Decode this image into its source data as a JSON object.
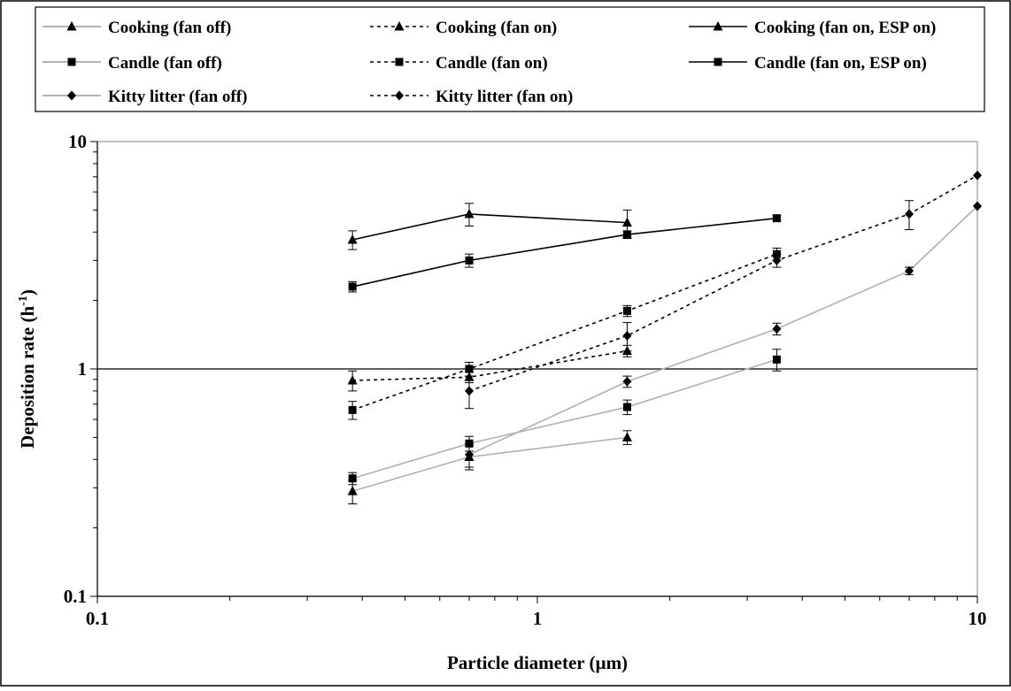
{
  "chart_data": {
    "type": "line",
    "xlabel": "Particle diameter (µm)",
    "ylabel": "Deposition rate (h",
    "ylabel_sup": "-1",
    "ylabel_close": ")",
    "x_scale": "log",
    "y_scale": "log",
    "xlim": [
      0.1,
      10
    ],
    "ylim": [
      0.1,
      10
    ],
    "x_ticks": [
      "0.1",
      "1",
      "10"
    ],
    "y_ticks": [
      "0.1",
      "1",
      "10"
    ],
    "reference_line_y": 1,
    "grid": false,
    "legend_position": "top",
    "series": [
      {
        "name": "Cooking (fan off)",
        "color": "#b0b0b0",
        "dash": "solid",
        "marker": "triangle",
        "x": [
          0.38,
          0.7,
          1.6
        ],
        "y": [
          0.29,
          0.41,
          0.5
        ],
        "err": [
          0.035,
          0.05,
          0.035
        ]
      },
      {
        "name": "Cooking (fan on)",
        "color": "#000000",
        "dash": "dotted",
        "marker": "triangle",
        "x": [
          0.38,
          0.7,
          1.6
        ],
        "y": [
          0.89,
          0.92,
          1.2
        ],
        "err": [
          0.09,
          0.05,
          0.07
        ]
      },
      {
        "name": "Cooking (fan on, ESP on)",
        "color": "#000000",
        "dash": "solid",
        "marker": "triangle",
        "x": [
          0.38,
          0.7,
          1.6
        ],
        "y": [
          3.7,
          4.8,
          4.4
        ],
        "err": [
          0.35,
          0.55,
          0.6
        ]
      },
      {
        "name": "Candle (fan off)",
        "color": "#b0b0b0",
        "dash": "solid",
        "marker": "square",
        "x": [
          0.38,
          0.7,
          1.6,
          3.5
        ],
        "y": [
          0.33,
          0.47,
          0.68,
          1.1
        ],
        "err": [
          0.02,
          0.035,
          0.05,
          0.12
        ]
      },
      {
        "name": "Candle (fan on)",
        "color": "#000000",
        "dash": "dotted",
        "marker": "square",
        "x": [
          0.38,
          0.7,
          1.6,
          3.5
        ],
        "y": [
          0.66,
          1.0,
          1.8,
          3.2
        ],
        "err": [
          0.06,
          0.07,
          0.1,
          0.2
        ]
      },
      {
        "name": "Candle (fan on, ESP on)",
        "color": "#000000",
        "dash": "solid",
        "marker": "square",
        "x": [
          0.38,
          0.7,
          1.6,
          3.5
        ],
        "y": [
          2.3,
          3.0,
          3.9,
          4.6
        ],
        "err": [
          0.12,
          0.2,
          0.15,
          0.12
        ]
      },
      {
        "name": "Kitty litter (fan off)",
        "color": "#b0b0b0",
        "dash": "solid",
        "marker": "diamond",
        "x": [
          0.7,
          1.6,
          3.5,
          7.0,
          10.0
        ],
        "y": [
          0.42,
          0.88,
          1.5,
          2.7,
          5.2
        ],
        "err": [
          0.05,
          0.05,
          0.09,
          0.1,
          0
        ]
      },
      {
        "name": "Kitty litter (fan on)",
        "color": "#000000",
        "dash": "dotted",
        "marker": "diamond",
        "x": [
          0.7,
          1.6,
          3.5,
          7.0,
          10.0
        ],
        "y": [
          0.8,
          1.4,
          3.0,
          4.8,
          7.1
        ],
        "err": [
          0.13,
          0.2,
          0.2,
          0.7,
          0
        ]
      }
    ]
  }
}
